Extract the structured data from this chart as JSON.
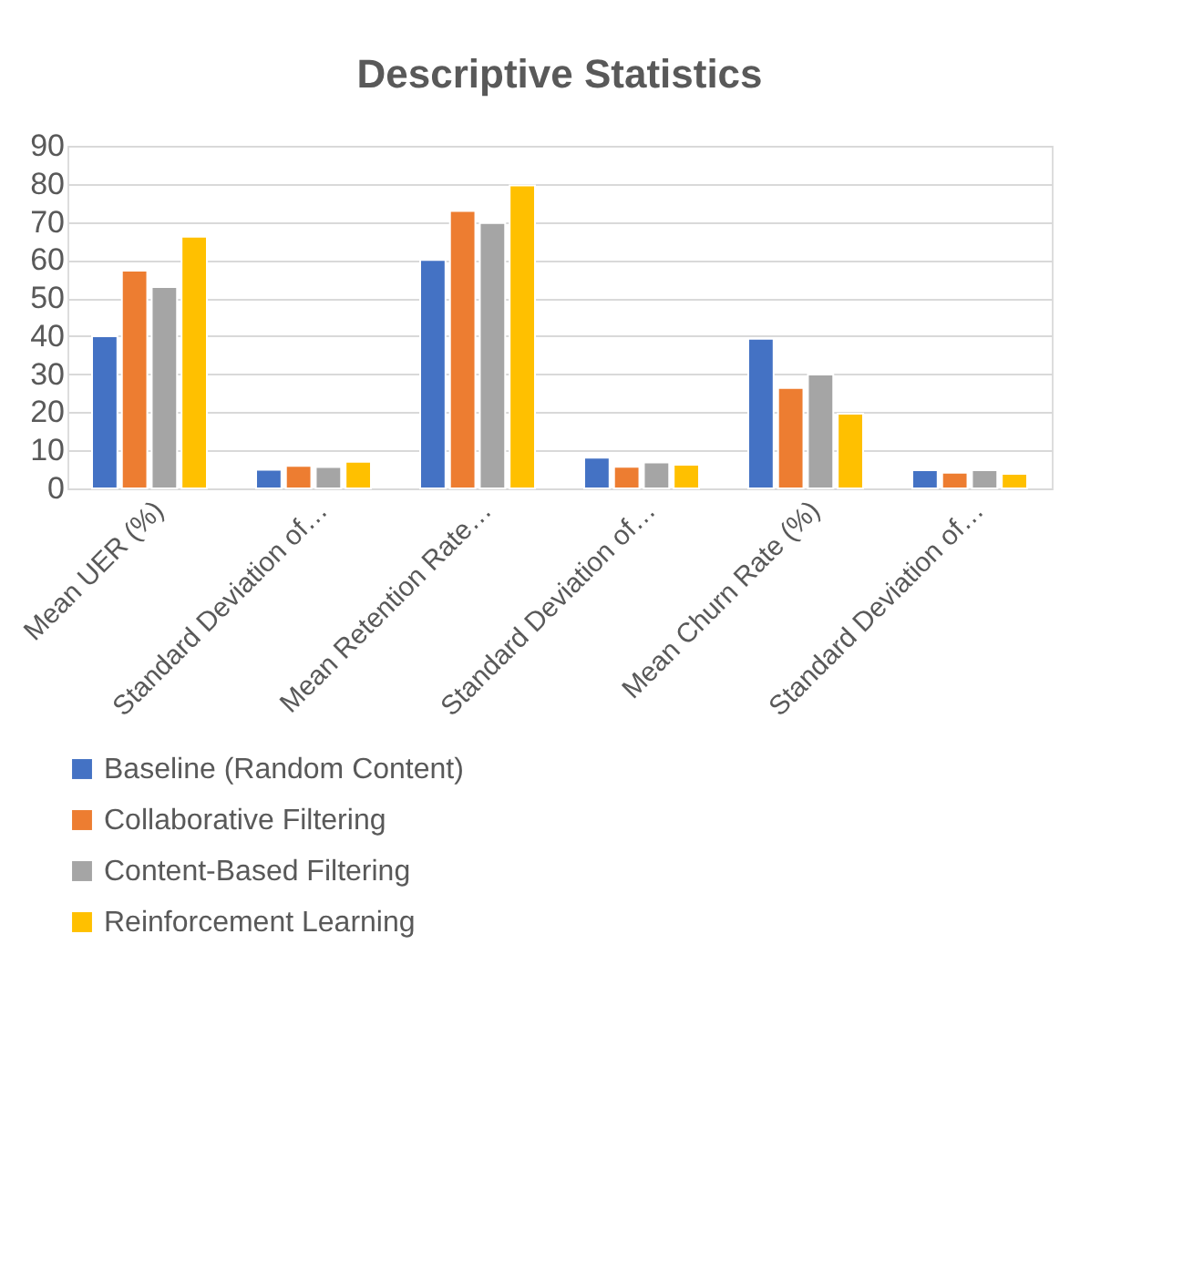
{
  "chart_data": {
    "type": "bar",
    "title": "Descriptive Statistics",
    "categories": [
      "Mean UER (%)",
      "Standard Deviation of…",
      "Mean Retention Rate…",
      "Standard Deviation of…",
      "Mean Churn Rate (%)",
      "Standard Deviation of…"
    ],
    "series": [
      {
        "name": "Baseline (Random Content)",
        "color": "#4472c4",
        "values": [
          40,
          4.9,
          60,
          8.1,
          39.3,
          4.8
        ]
      },
      {
        "name": "Collaborative Filtering",
        "color": "#ed7d31",
        "values": [
          57.2,
          5.9,
          72.9,
          5.7,
          26.4,
          4.1
        ]
      },
      {
        "name": "Content-Based Filtering",
        "color": "#a5a5a5",
        "values": [
          52.9,
          5.6,
          69.7,
          6.8,
          29.9,
          4.8
        ]
      },
      {
        "name": "Reinforcement Learning",
        "color": "#ffc000",
        "values": [
          66.1,
          7.0,
          79.6,
          6.2,
          19.6,
          3.8
        ]
      }
    ],
    "ylim": [
      0,
      90
    ],
    "yticks": [
      0,
      10,
      20,
      30,
      40,
      50,
      60,
      70,
      80,
      90
    ],
    "grid": "y",
    "legend": "bottom"
  }
}
